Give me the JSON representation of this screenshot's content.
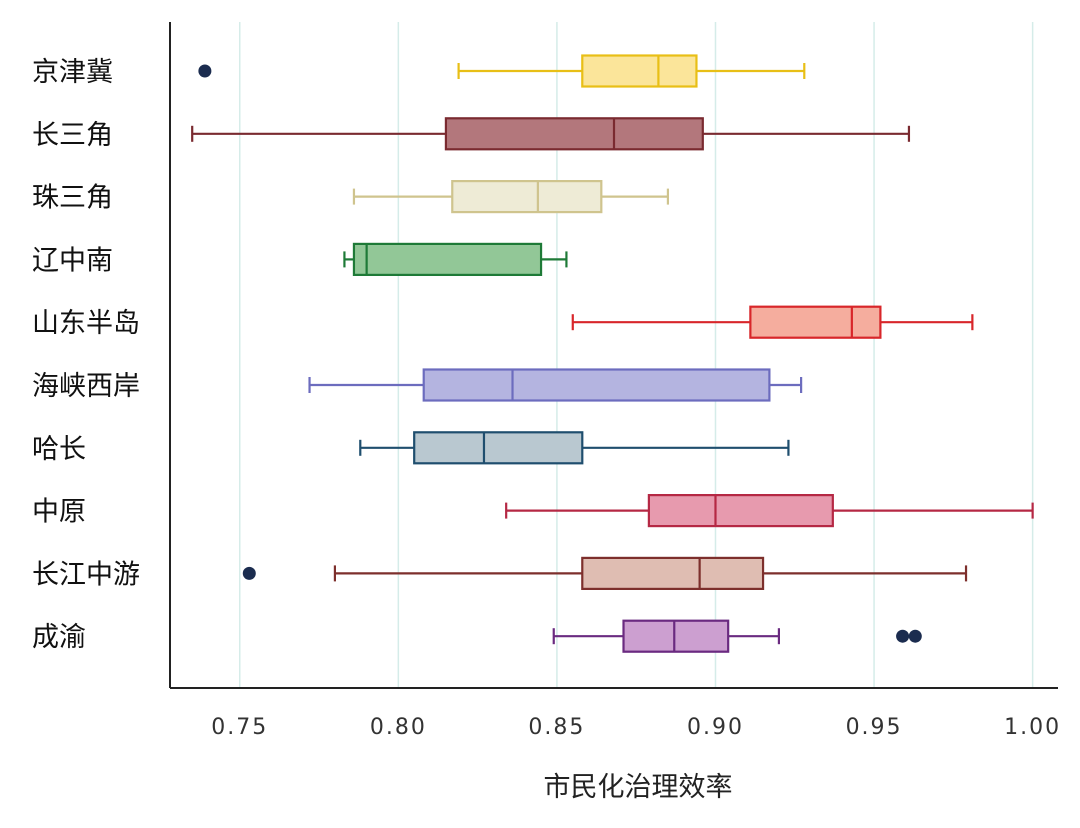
{
  "chart_data": {
    "type": "boxplot",
    "orientation": "horizontal",
    "title": "",
    "xlabel": "市民化治理效率",
    "ylabel": "",
    "xlim": [
      0.728,
      1.008
    ],
    "xticks": [
      0.75,
      0.8,
      0.85,
      0.9,
      0.95,
      1.0
    ],
    "xtick_labels": [
      "0.75",
      "0.80",
      "0.85",
      "0.90",
      "0.95",
      "1.00"
    ],
    "grid": "vertical",
    "legend": "none",
    "series": [
      {
        "name": "京津冀",
        "min": 0.819,
        "q1": 0.858,
        "median": 0.882,
        "q3": 0.894,
        "max": 0.928,
        "outliers": [
          0.739
        ],
        "fill": "#fbe59a",
        "stroke": "#e8bf16"
      },
      {
        "name": "长三角",
        "min": 0.735,
        "q1": 0.815,
        "median": 0.868,
        "q3": 0.896,
        "max": 0.961,
        "outliers": [],
        "fill": "#b3777c",
        "stroke": "#7a2a30"
      },
      {
        "name": "珠三角",
        "min": 0.786,
        "q1": 0.817,
        "median": 0.844,
        "q3": 0.864,
        "max": 0.885,
        "outliers": [],
        "fill": "#eeebd6",
        "stroke": "#cfc48e"
      },
      {
        "name": "辽中南",
        "min": 0.783,
        "q1": 0.786,
        "median": 0.79,
        "q3": 0.845,
        "max": 0.853,
        "outliers": [],
        "fill": "#92c797",
        "stroke": "#1e7a37"
      },
      {
        "name": "山东半岛",
        "min": 0.855,
        "q1": 0.911,
        "median": 0.943,
        "q3": 0.952,
        "max": 0.981,
        "outliers": [],
        "fill": "#f5ad9e",
        "stroke": "#d8262a"
      },
      {
        "name": "海峡西岸",
        "min": 0.772,
        "q1": 0.808,
        "median": 0.836,
        "q3": 0.917,
        "max": 0.927,
        "outliers": [],
        "fill": "#b4b4e0",
        "stroke": "#6c6cbe"
      },
      {
        "name": "哈长",
        "min": 0.788,
        "q1": 0.805,
        "median": 0.827,
        "q3": 0.858,
        "max": 0.923,
        "outliers": [],
        "fill": "#b9c8d0",
        "stroke": "#1f4e6e"
      },
      {
        "name": "中原",
        "min": 0.834,
        "q1": 0.879,
        "median": 0.9,
        "q3": 0.937,
        "max": 1.0,
        "outliers": [],
        "fill": "#e79aae",
        "stroke": "#b52844"
      },
      {
        "name": "长江中游",
        "min": 0.78,
        "q1": 0.858,
        "median": 0.895,
        "q3": 0.915,
        "max": 0.979,
        "outliers": [
          0.753
        ],
        "fill": "#dfbdb2",
        "stroke": "#7d2f2c"
      },
      {
        "name": "成渝",
        "min": 0.849,
        "q1": 0.871,
        "median": 0.887,
        "q3": 0.904,
        "max": 0.92,
        "outliers": [
          0.959,
          0.963
        ],
        "fill": "#cc9fd0",
        "stroke": "#6a2a80"
      }
    ],
    "outlier_color": "#1b2c4f"
  }
}
